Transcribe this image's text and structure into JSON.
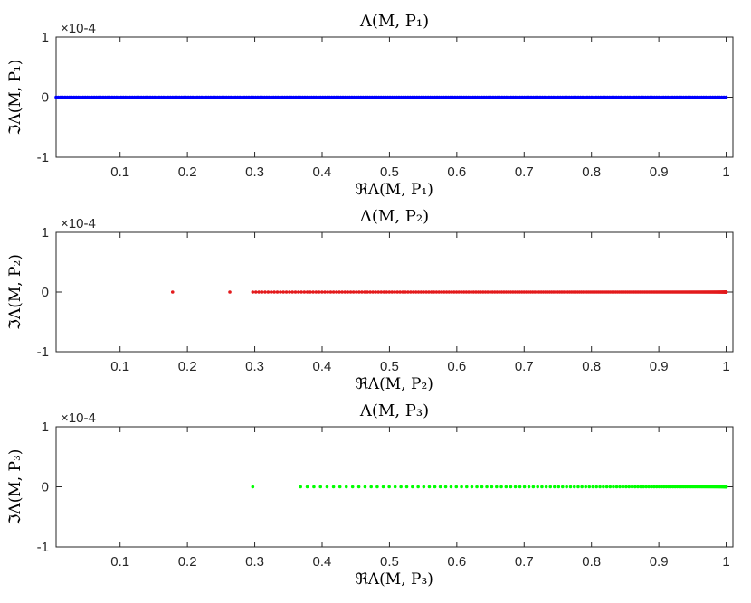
{
  "chart_data": [
    {
      "type": "scatter",
      "title": "Λ(M, P₁)",
      "xlabel": "ℜΛ(M, P₁)",
      "ylabel": "ℑΛ(M, P₁)",
      "y_exponent": "×10-4",
      "xlim": [
        0.005,
        1.01
      ],
      "ylim": [
        -1,
        1
      ],
      "xticks": [
        "0.1",
        "0.2",
        "0.3",
        "0.4",
        "0.5",
        "0.6",
        "0.7",
        "0.8",
        "0.9",
        "1"
      ],
      "yticks": [
        "-1",
        "0",
        "1"
      ],
      "grid": false,
      "color": "#0000ff",
      "series": [
        {
          "distribution": "uniform",
          "x_range": [
            0.005,
            1.0
          ],
          "count": 300,
          "y": 0
        }
      ]
    },
    {
      "type": "scatter",
      "title": "Λ(M, P₂)",
      "xlabel": "ℜΛ(M, P₂)",
      "ylabel": "ℑΛ(M, P₂)",
      "y_exponent": "×10-4",
      "xlim": [
        0.005,
        1.01
      ],
      "ylim": [
        -1,
        1
      ],
      "xticks": [
        "0.1",
        "0.2",
        "0.3",
        "0.4",
        "0.5",
        "0.6",
        "0.7",
        "0.8",
        "0.9",
        "1"
      ],
      "yticks": [
        "-1",
        "0",
        "1"
      ],
      "grid": false,
      "color": "#e31a1c",
      "points": [
        {
          "x": 0.178,
          "y": 0
        },
        {
          "x": 0.263,
          "y": 0
        }
      ],
      "series": [
        {
          "distribution": "dense",
          "x_range": [
            0.297,
            1.0
          ],
          "count": 260,
          "y": 0
        }
      ]
    },
    {
      "type": "scatter",
      "title": "Λ(M, P₃)",
      "xlabel": "ℜΛ(M, P₃)",
      "ylabel": "ℑΛ(M, P₃)",
      "y_exponent": "×10-4",
      "xlim": [
        0.005,
        1.01
      ],
      "ylim": [
        -1,
        1
      ],
      "xticks": [
        "0.1",
        "0.2",
        "0.3",
        "0.4",
        "0.5",
        "0.6",
        "0.7",
        "0.8",
        "0.9",
        "1"
      ],
      "yticks": [
        "-1",
        "0",
        "1"
      ],
      "grid": false,
      "color": "#00ff00",
      "points": [
        {
          "x": 0.297,
          "y": 0
        }
      ],
      "series": [
        {
          "distribution": "sparse",
          "x_range": [
            0.368,
            1.0
          ],
          "count": 140,
          "y": 0
        }
      ]
    }
  ]
}
